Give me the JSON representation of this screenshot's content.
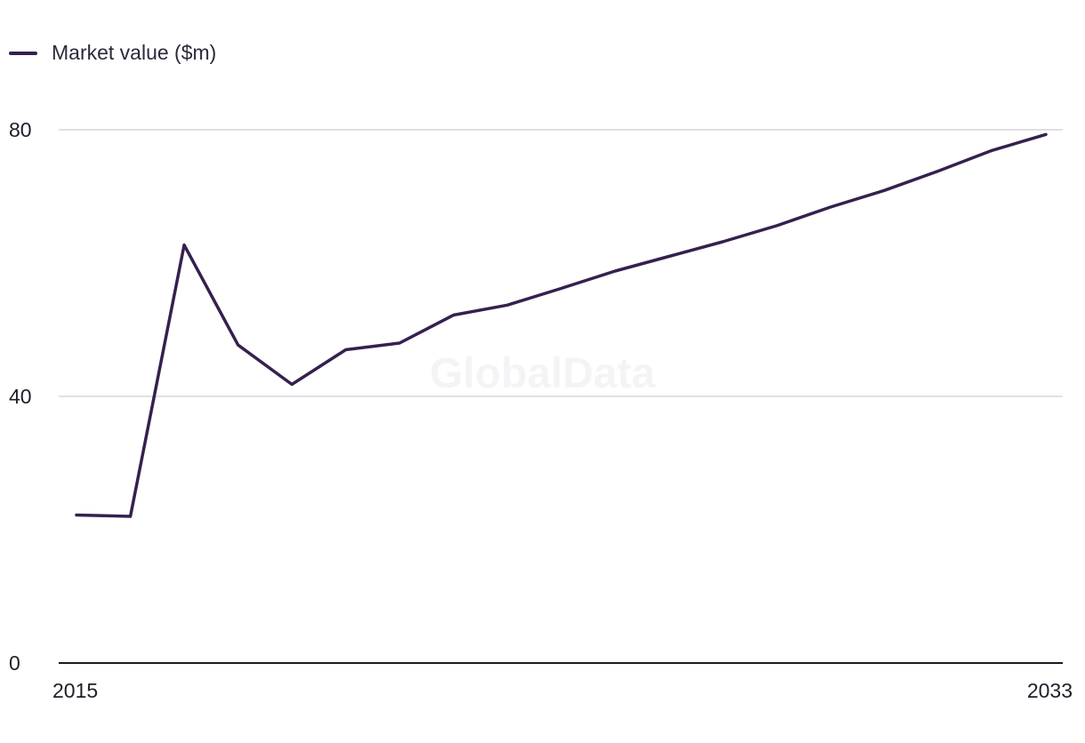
{
  "legend": {
    "label": "Market value ($m)"
  },
  "watermark": "GlobalData",
  "colors": {
    "series": "#35204f",
    "grid": "#d6d6dc",
    "axis": "#1a1a22"
  },
  "chart_data": {
    "type": "line",
    "title": "",
    "xlabel": "",
    "ylabel": "",
    "x": [
      2015,
      2016,
      2017,
      2018,
      2019,
      2020,
      2021,
      2022,
      2023,
      2024,
      2025,
      2026,
      2027,
      2028,
      2029,
      2030,
      2031,
      2032,
      2033
    ],
    "xticks": [
      "2015",
      "2033"
    ],
    "yticks": [
      0,
      40,
      80
    ],
    "ylim": [
      0,
      80
    ],
    "grid": true,
    "legend_position": "top-left",
    "series": [
      {
        "name": "Market value ($m)",
        "values": [
          22.2,
          22.0,
          62.7,
          47.7,
          41.8,
          47.0,
          48.0,
          52.2,
          53.7,
          56.2,
          58.8,
          61.0,
          63.2,
          65.6,
          68.4,
          70.9,
          73.8,
          76.9,
          79.3
        ]
      }
    ]
  }
}
